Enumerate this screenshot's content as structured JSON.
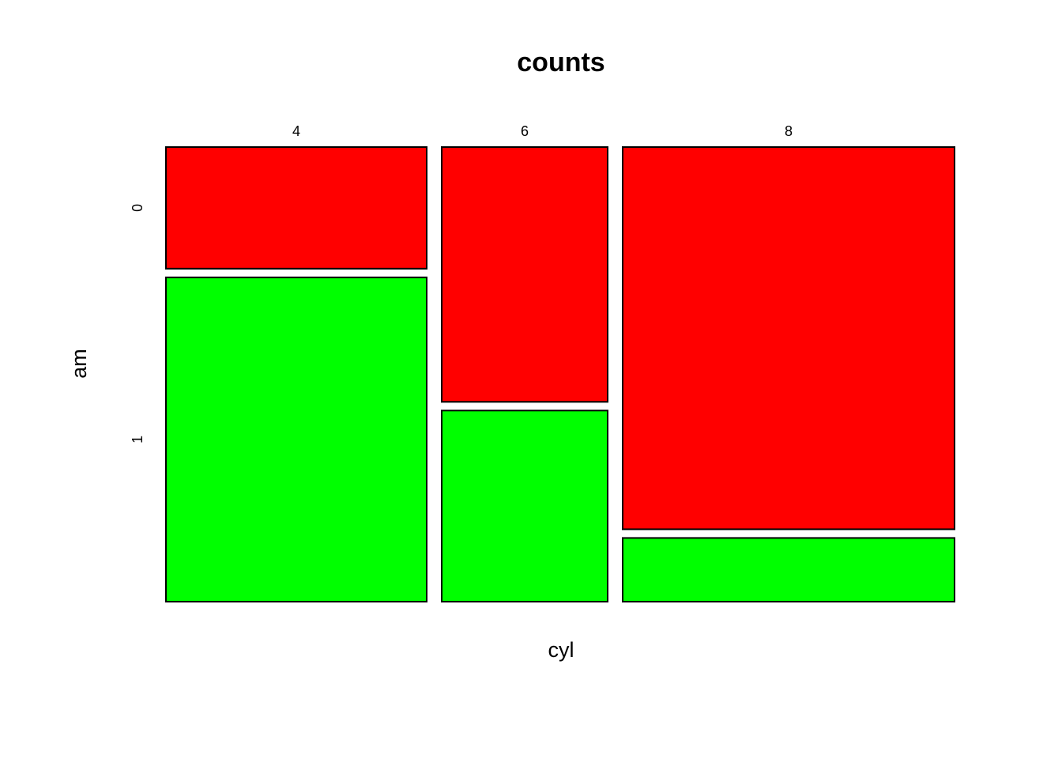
{
  "chart_data": {
    "type": "mosaic",
    "title": "counts",
    "xlabel": "cyl",
    "ylabel": "am",
    "categories": [
      "4",
      "6",
      "8"
    ],
    "series": [
      {
        "name": "0",
        "color": "#ff0000",
        "values": [
          3,
          4,
          12
        ]
      },
      {
        "name": "1",
        "color": "#00ff00",
        "values": [
          8,
          3,
          2
        ]
      }
    ]
  }
}
